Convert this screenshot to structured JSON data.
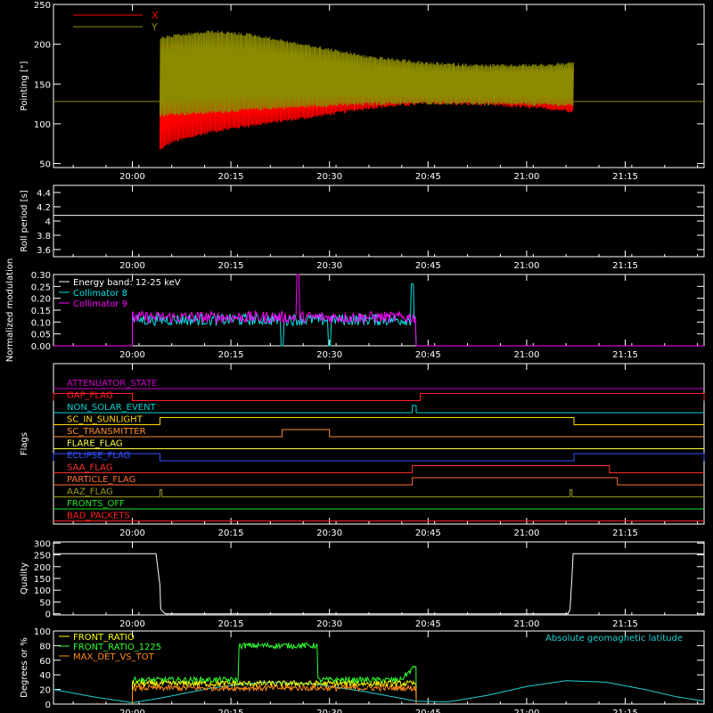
{
  "chart_data": [
    {
      "type": "line",
      "ylabel": "Pointing [\"]",
      "ylim": [
        45,
        250
      ],
      "yticks": [
        50,
        100,
        150,
        200,
        250
      ],
      "xlim": [
        19.8,
        21.45
      ],
      "xticks": [
        20.0,
        20.25,
        20.5,
        20.75,
        21.0,
        21.25
      ],
      "xtick_labels": [
        "20:00",
        "20:15",
        "20:30",
        "20:45",
        "21:00",
        "21:15"
      ],
      "legend": "top-left",
      "reference_line": 128,
      "series": [
        {
          "name": "X",
          "color": "#ff0000",
          "start": 20.07,
          "end": 21.12,
          "envelope_time": [
            20.07,
            20.1,
            20.2,
            20.3,
            20.45,
            20.6,
            20.75,
            20.9,
            21.05,
            21.12
          ],
          "envelope_low": [
            65,
            75,
            88,
            96,
            106,
            118,
            124,
            122,
            117,
            114
          ],
          "envelope_high": [
            200,
            200,
            195,
            190,
            180,
            172,
            168,
            168,
            170,
            170
          ]
        },
        {
          "name": "Y",
          "color": "#8b8b00",
          "start": 20.07,
          "end": 21.12,
          "envelope_time": [
            20.07,
            20.1,
            20.2,
            20.3,
            20.45,
            20.6,
            20.75,
            20.9,
            21.05,
            21.12
          ],
          "envelope_low": [
            108,
            110,
            112,
            116,
            120,
            123,
            124,
            123,
            122,
            121
          ],
          "envelope_high": [
            210,
            212,
            218,
            214,
            200,
            186,
            178,
            175,
            176,
            178
          ]
        }
      ]
    },
    {
      "type": "line",
      "ylabel": "Roll period [s]",
      "ylim": [
        3.5,
        4.5
      ],
      "yticks": [
        3.6,
        3.8,
        4.0,
        4.2,
        4.4
      ],
      "xlim": [
        19.8,
        21.45
      ],
      "xticks": [
        20.0,
        20.25,
        20.5,
        20.75,
        21.0,
        21.25
      ],
      "xtick_labels": [
        "20:00",
        "20:15",
        "20:30",
        "20:45",
        "21:00",
        "21:15"
      ],
      "series": [
        {
          "color": "#ffffff",
          "constant": 4.08
        }
      ]
    },
    {
      "type": "line",
      "ylabel": "Normalized modulation",
      "ylim": [
        0.0,
        0.3
      ],
      "yticks": [
        0.0,
        0.05,
        0.1,
        0.15,
        0.2,
        0.25,
        0.3
      ],
      "ytick_labels": [
        "0.00",
        "0.05",
        "0.10",
        "0.15",
        "0.20",
        "0.25",
        "0.30"
      ],
      "xlim": [
        19.8,
        21.45
      ],
      "xticks": [
        20.0,
        20.25,
        20.5,
        20.75,
        21.0,
        21.25
      ],
      "xtick_labels": [
        "20:00",
        "20:15",
        "20:30",
        "20:45",
        "21:00",
        "21:15"
      ],
      "legend_title": "Energy band: 12-25 keV",
      "series": [
        {
          "name": "Collimator 8",
          "color": "#00e5e5",
          "start": 20.0,
          "end": 20.72,
          "mean": 0.11
        },
        {
          "name": "Collimator 9",
          "color": "#ff00ff",
          "start": 20.0,
          "end": 20.72,
          "mean": 0.12
        }
      ]
    },
    {
      "type": "line",
      "ylabel": "Flags",
      "xlim": [
        19.8,
        21.45
      ],
      "xticks": [
        20.0,
        20.25,
        20.5,
        20.75,
        21.0,
        21.25
      ],
      "xtick_labels": [
        "20:00",
        "20:15",
        "20:30",
        "20:45",
        "21:00",
        "21:15"
      ],
      "series": [
        {
          "name": "ATTENUATOR_STATE",
          "color": "#cc00cc",
          "high": []
        },
        {
          "name": "GAP_FLAG",
          "color": "#ff2020",
          "high": [
            [
              19.8,
              20.0
            ],
            [
              20.73,
              21.45
            ]
          ]
        },
        {
          "name": "NON_SOLAR_EVENT",
          "color": "#00d0d0",
          "high": [
            [
              20.71,
              20.72
            ]
          ]
        },
        {
          "name": "SC_IN_SUNLIGHT",
          "color": "#ffd700",
          "high": [
            [
              20.07,
              21.12
            ]
          ]
        },
        {
          "name": "SC_TRANSMITTER",
          "color": "#ff8c30",
          "high": [
            [
              20.38,
              20.5
            ]
          ]
        },
        {
          "name": "FLARE_FLAG",
          "color": "#ffff40",
          "high": []
        },
        {
          "name": "ECLIPSE_FLAG",
          "color": "#3050ff",
          "high": [
            [
              19.8,
              20.07
            ],
            [
              21.12,
              21.45
            ]
          ]
        },
        {
          "name": "SAA_FLAG",
          "color": "#ff3030",
          "high": [
            [
              20.71,
              21.21
            ]
          ]
        },
        {
          "name": "PARTICLE_FLAG",
          "color": "#ff7030",
          "high": [
            [
              20.71,
              21.23
            ]
          ]
        },
        {
          "name": "AAZ_FLAG",
          "color": "#9a9a20",
          "high": [
            [
              20.07,
              20.075
            ],
            [
              21.11,
              21.115
            ]
          ]
        },
        {
          "name": "FRONTS_OFF",
          "color": "#20e020",
          "high": []
        },
        {
          "name": "BAD_PACKETS",
          "color": "#ff2020",
          "high": []
        }
      ]
    },
    {
      "type": "line",
      "ylabel": "Quality",
      "ylim": [
        -5,
        305
      ],
      "yticks": [
        0,
        50,
        100,
        150,
        200,
        250,
        300
      ],
      "xlim": [
        19.8,
        21.45
      ],
      "xticks": [
        20.0,
        20.25,
        20.5,
        20.75,
        21.0,
        21.25
      ],
      "xtick_labels": [
        "20:00",
        "20:15",
        "20:30",
        "20:45",
        "21:00",
        "21:15"
      ],
      "series": [
        {
          "color": "#ffffff",
          "points": [
            [
              19.8,
              255
            ],
            [
              20.06,
              255
            ],
            [
              20.07,
              120
            ],
            [
              20.072,
              20
            ],
            [
              20.08,
              5
            ],
            [
              20.085,
              0
            ],
            [
              21.105,
              0
            ],
            [
              21.11,
              20
            ],
            [
              21.115,
              160
            ],
            [
              21.118,
              255
            ],
            [
              21.45,
              255
            ]
          ]
        }
      ]
    },
    {
      "type": "line",
      "ylabel": "Degrees or %",
      "ylim": [
        0,
        100
      ],
      "yticks": [
        0,
        20,
        40,
        60,
        80,
        100
      ],
      "xlim": [
        19.8,
        21.45
      ],
      "xticks": [
        20.0,
        20.25,
        20.5,
        20.75,
        21.0,
        21.25
      ],
      "xtick_labels": [
        "20:00",
        "20:15",
        "20:30",
        "20:45",
        "21:00",
        "21:15"
      ],
      "legend": "top-left",
      "annotation": "Absolute geomagnetic latitude",
      "series": [
        {
          "name": "FRONT_RATIO",
          "color": "#ffff00",
          "start": 20.0,
          "end": 20.72,
          "mean": 28
        },
        {
          "name": "FRONT_RATIO_1225",
          "color": "#30ff30",
          "start": 20.0,
          "end": 20.72,
          "segments": [
            [
              20.0,
              20.27,
              33
            ],
            [
              20.27,
              20.47,
              80
            ],
            [
              20.47,
              20.68,
              33
            ],
            [
              20.68,
              20.72,
              50
            ]
          ]
        },
        {
          "name": "MAX_DET_VS_TOT",
          "color": "#ff8c1a",
          "start": 20.0,
          "end": 20.72,
          "mean": 22
        },
        {
          "name": "Absolute geomagnetic latitude",
          "color": "#20d0d0",
          "points": [
            [
              19.8,
              20
            ],
            [
              19.9,
              10
            ],
            [
              20.0,
              2
            ],
            [
              20.07,
              8
            ],
            [
              20.2,
              22
            ],
            [
              20.33,
              30
            ],
            [
              20.45,
              28
            ],
            [
              20.58,
              18
            ],
            [
              20.68,
              8
            ],
            [
              20.72,
              4
            ],
            [
              20.8,
              3
            ],
            [
              20.9,
              12
            ],
            [
              21.0,
              24
            ],
            [
              21.1,
              32
            ],
            [
              21.2,
              30
            ],
            [
              21.3,
              20
            ],
            [
              21.38,
              10
            ],
            [
              21.45,
              4
            ]
          ]
        }
      ]
    }
  ]
}
